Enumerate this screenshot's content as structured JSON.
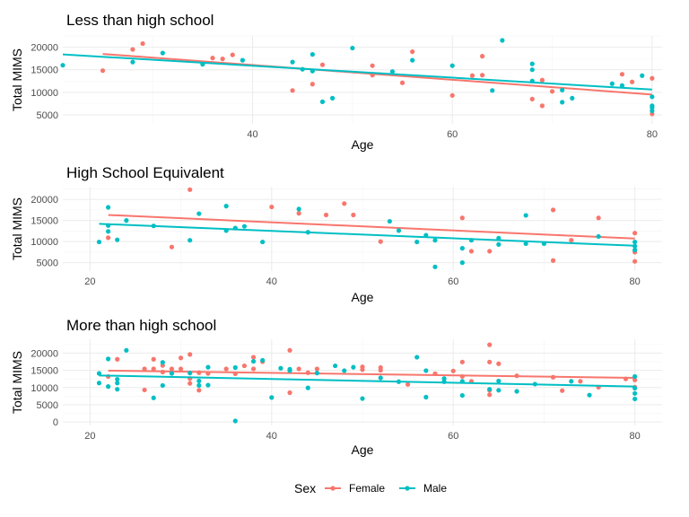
{
  "chart_data": [
    {
      "type": "scatter",
      "title": "Less than high school",
      "xlabel": "Age",
      "ylabel": "Total MIMS",
      "xlim": [
        21,
        81
      ],
      "ylim": [
        3000,
        22500
      ],
      "x_ticks": [
        40,
        60,
        80
      ],
      "y_ticks": [
        5000,
        10000,
        15000,
        20000
      ],
      "series": [
        {
          "name": "Female",
          "points": [
            [
              25,
              14800
            ],
            [
              28,
              19500
            ],
            [
              29,
              20800
            ],
            [
              36,
              17600
            ],
            [
              37,
              17400
            ],
            [
              38,
              18300
            ],
            [
              44,
              10400
            ],
            [
              46,
              11800
            ],
            [
              47,
              16100
            ],
            [
              52,
              15900
            ],
            [
              52,
              13800
            ],
            [
              55,
              12100
            ],
            [
              56,
              19000
            ],
            [
              60,
              9300
            ],
            [
              62,
              13700
            ],
            [
              63,
              18000
            ],
            [
              63,
              13800
            ],
            [
              68,
              8500
            ],
            [
              69,
              12700
            ],
            [
              69,
              7000
            ],
            [
              70,
              10200
            ],
            [
              77,
              14000
            ],
            [
              78,
              12300
            ],
            [
              80,
              13100
            ],
            [
              80,
              5200
            ]
          ],
          "trend": [
            [
              25,
              18500
            ],
            [
              80,
              9500
            ]
          ]
        },
        {
          "name": "Male",
          "points": [
            [
              21,
              16000
            ],
            [
              28,
              16700
            ],
            [
              31,
              18700
            ],
            [
              35,
              16200
            ],
            [
              39,
              17100
            ],
            [
              44,
              16700
            ],
            [
              45,
              15100
            ],
            [
              46,
              18400
            ],
            [
              46,
              14700
            ],
            [
              47,
              7900
            ],
            [
              48,
              8700
            ],
            [
              50,
              19800
            ],
            [
              54,
              14600
            ],
            [
              56,
              17100
            ],
            [
              60,
              15900
            ],
            [
              64,
              10400
            ],
            [
              65,
              21500
            ],
            [
              68,
              16300
            ],
            [
              68,
              15000
            ],
            [
              68,
              12500
            ],
            [
              71,
              10500
            ],
            [
              71,
              7800
            ],
            [
              72,
              8700
            ],
            [
              76,
              11900
            ],
            [
              77,
              11500
            ],
            [
              79,
              13700
            ],
            [
              80,
              9000
            ],
            [
              80,
              7000
            ],
            [
              80,
              6600
            ],
            [
              80,
              5900
            ]
          ],
          "trend": [
            [
              21,
              18400
            ],
            [
              80,
              10600
            ]
          ]
        }
      ]
    },
    {
      "type": "scatter",
      "title": "High School Equivalent",
      "xlabel": "Age",
      "ylabel": "Total MIMS",
      "xlim": [
        17,
        83
      ],
      "ylim": [
        3000,
        23000
      ],
      "x_ticks": [
        20,
        40,
        60,
        80
      ],
      "y_ticks": [
        5000,
        10000,
        15000,
        20000
      ],
      "series": [
        {
          "name": "Female",
          "points": [
            [
              22,
              10900
            ],
            [
              29,
              8700
            ],
            [
              31,
              22300
            ],
            [
              40,
              18200
            ],
            [
              43,
              16700
            ],
            [
              46,
              16300
            ],
            [
              48,
              19000
            ],
            [
              49,
              16300
            ],
            [
              52,
              10000
            ],
            [
              61,
              15600
            ],
            [
              62,
              7700
            ],
            [
              64,
              7700
            ],
            [
              71,
              17500
            ],
            [
              71,
              5500
            ],
            [
              73,
              10300
            ],
            [
              76,
              15600
            ],
            [
              80,
              12000
            ],
            [
              80,
              7500
            ],
            [
              80,
              5300
            ]
          ],
          "trend": [
            [
              22,
              16300
            ],
            [
              80,
              10700
            ]
          ]
        },
        {
          "name": "Male",
          "points": [
            [
              21,
              9900
            ],
            [
              22,
              18100
            ],
            [
              22,
              13800
            ],
            [
              22,
              12400
            ],
            [
              23,
              10400
            ],
            [
              24,
              15000
            ],
            [
              27,
              13700
            ],
            [
              31,
              10300
            ],
            [
              32,
              16600
            ],
            [
              35,
              18400
            ],
            [
              35,
              12600
            ],
            [
              36,
              13200
            ],
            [
              37,
              13600
            ],
            [
              39,
              9900
            ],
            [
              43,
              17700
            ],
            [
              44,
              12200
            ],
            [
              53,
              14800
            ],
            [
              54,
              12600
            ],
            [
              56,
              9900
            ],
            [
              57,
              11500
            ],
            [
              58,
              10300
            ],
            [
              58,
              4000
            ],
            [
              61,
              8400
            ],
            [
              61,
              5000
            ],
            [
              62,
              10300
            ],
            [
              65,
              10800
            ],
            [
              65,
              9300
            ],
            [
              68,
              16200
            ],
            [
              68,
              9500
            ],
            [
              70,
              9500
            ],
            [
              76,
              11200
            ],
            [
              80,
              9900
            ],
            [
              80,
              8900
            ],
            [
              80,
              8000
            ]
          ],
          "trend": [
            [
              21,
              14200
            ],
            [
              80,
              9000
            ]
          ]
        }
      ]
    },
    {
      "type": "scatter",
      "title": "More than high school",
      "xlabel": "Age",
      "ylabel": "Total MIMS",
      "xlim": [
        17,
        83
      ],
      "ylim": [
        -1000,
        24000
      ],
      "x_ticks": [
        20,
        40,
        60,
        80
      ],
      "y_ticks": [
        0,
        5000,
        10000,
        15000,
        20000
      ],
      "series": [
        {
          "name": "Female",
          "points": [
            [
              22,
              13200
            ],
            [
              23,
              18200
            ],
            [
              26,
              9300
            ],
            [
              26,
              15400
            ],
            [
              27,
              18200
            ],
            [
              27,
              15400
            ],
            [
              28,
              14500
            ],
            [
              28,
              16400
            ],
            [
              29,
              15400
            ],
            [
              30,
              18600
            ],
            [
              30,
              15400
            ],
            [
              31,
              19600
            ],
            [
              31,
              12600
            ],
            [
              31,
              11200
            ],
            [
              32,
              14300
            ],
            [
              32,
              9200
            ],
            [
              33,
              14100
            ],
            [
              35,
              15400
            ],
            [
              36,
              14000
            ],
            [
              37,
              16300
            ],
            [
              38,
              18800
            ],
            [
              38,
              15400
            ],
            [
              39,
              17500
            ],
            [
              42,
              20800
            ],
            [
              42,
              8500
            ],
            [
              43,
              15400
            ],
            [
              44,
              14300
            ],
            [
              45,
              15400
            ],
            [
              50,
              16000
            ],
            [
              50,
              15200
            ],
            [
              52,
              15800
            ],
            [
              52,
              15000
            ],
            [
              55,
              10900
            ],
            [
              58,
              14000
            ],
            [
              60,
              14800
            ],
            [
              61,
              17400
            ],
            [
              61,
              13200
            ],
            [
              62,
              11800
            ],
            [
              64,
              22400
            ],
            [
              64,
              17400
            ],
            [
              64,
              9200
            ],
            [
              64,
              7900
            ],
            [
              65,
              16900
            ],
            [
              67,
              13400
            ],
            [
              71,
              13000
            ],
            [
              72,
              9100
            ],
            [
              74,
              11800
            ],
            [
              76,
              10100
            ],
            [
              79,
              12500
            ],
            [
              80,
              12200
            ],
            [
              80,
              10100
            ]
          ],
          "trend": [
            [
              22,
              14900
            ],
            [
              80,
              12800
            ]
          ]
        },
        {
          "name": "Male",
          "points": [
            [
              21,
              14100
            ],
            [
              21,
              11300
            ],
            [
              22,
              18300
            ],
            [
              22,
              10300
            ],
            [
              23,
              9500
            ],
            [
              23,
              11300
            ],
            [
              23,
              12400
            ],
            [
              24,
              20800
            ],
            [
              27,
              7000
            ],
            [
              28,
              17300
            ],
            [
              28,
              10600
            ],
            [
              29,
              14100
            ],
            [
              31,
              14200
            ],
            [
              32,
              10600
            ],
            [
              32,
              11900
            ],
            [
              33,
              10700
            ],
            [
              33,
              15900
            ],
            [
              36,
              300
            ],
            [
              36,
              15800
            ],
            [
              38,
              17600
            ],
            [
              39,
              17900
            ],
            [
              40,
              7100
            ],
            [
              41,
              15600
            ],
            [
              42,
              14900
            ],
            [
              42,
              15300
            ],
            [
              44,
              9900
            ],
            [
              45,
              14200
            ],
            [
              47,
              16300
            ],
            [
              48,
              14900
            ],
            [
              49,
              15900
            ],
            [
              50,
              6800
            ],
            [
              52,
              12800
            ],
            [
              54,
              11700
            ],
            [
              56,
              18800
            ],
            [
              57,
              7200
            ],
            [
              57,
              14900
            ],
            [
              59,
              12600
            ],
            [
              59,
              11700
            ],
            [
              61,
              7700
            ],
            [
              61,
              11800
            ],
            [
              64,
              9500
            ],
            [
              65,
              11900
            ],
            [
              65,
              9200
            ],
            [
              67,
              8900
            ],
            [
              69,
              11000
            ],
            [
              73,
              11800
            ],
            [
              75,
              7800
            ],
            [
              80,
              13200
            ],
            [
              80,
              9800
            ],
            [
              80,
              8300
            ],
            [
              80,
              6700
            ]
          ],
          "trend": [
            [
              21,
              13500
            ],
            [
              80,
              10300
            ]
          ]
        }
      ]
    }
  ],
  "legend": {
    "title": "Sex",
    "position": "bottom",
    "entries": [
      {
        "name": "Female",
        "color": "#F8766D"
      },
      {
        "name": "Male",
        "color": "#00BFC4"
      }
    ]
  },
  "colors": {
    "Female": "#F8766D",
    "Male": "#00BFC4"
  },
  "grid": true
}
